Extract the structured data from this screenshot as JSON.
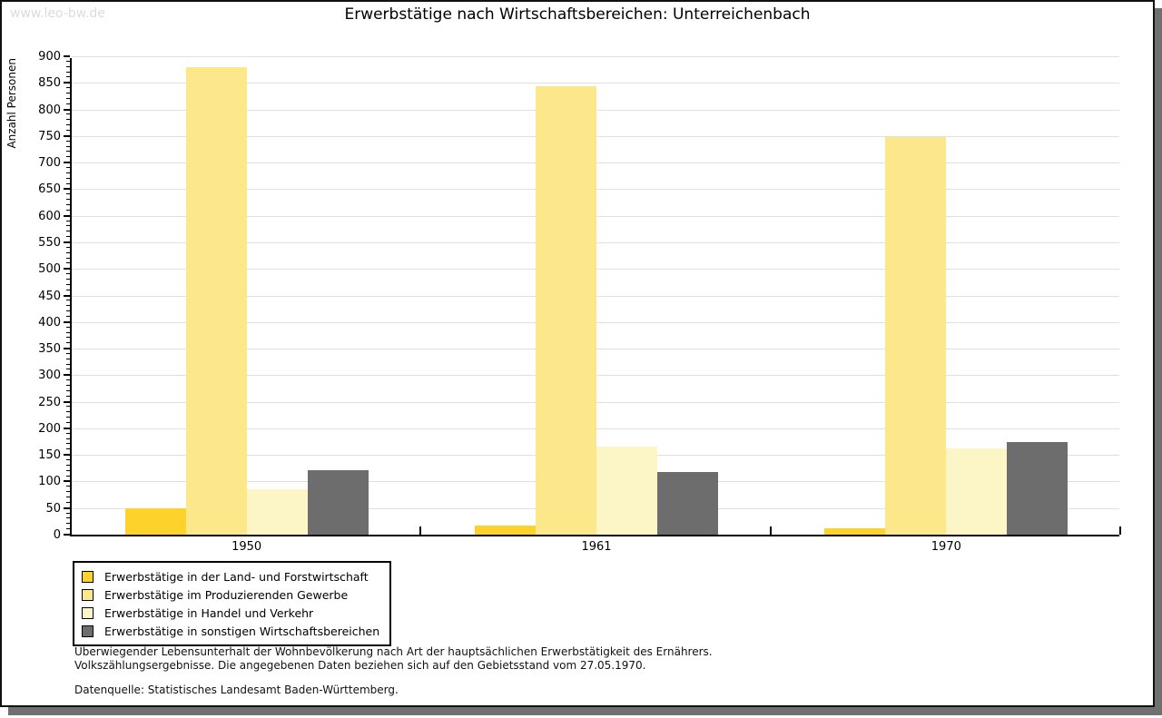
{
  "page": {
    "watermark": "www.leo-bw.de"
  },
  "chart_data": {
    "type": "bar",
    "title": "Erwerbstätige nach Wirtschaftsbereichen: Unterreichenbach",
    "ylabel": "Anzahl Personen",
    "ylim": [
      0,
      900
    ],
    "yticks": [
      0,
      50,
      100,
      150,
      200,
      250,
      300,
      350,
      400,
      450,
      500,
      550,
      600,
      650,
      700,
      750,
      800,
      850,
      900
    ],
    "minor_tick_step": 10,
    "grid": "horizontal",
    "legend_position": "bottom-left",
    "categories": [
      "1950",
      "1961",
      "1970"
    ],
    "series": [
      {
        "name": "Erwerbstätige in der Land- und Forstwirtschaft",
        "color": "#FCD22B",
        "values": [
          50,
          17,
          12
        ]
      },
      {
        "name": "Erwerbstätige im Produzierenden Gewerbe",
        "color": "#FCE88A",
        "values": [
          880,
          843,
          748
        ]
      },
      {
        "name": "Erwerbstätige in Handel und Verkehr",
        "color": "#FCF5C5",
        "values": [
          85,
          165,
          163
        ]
      },
      {
        "name": "Erwerbstätige in sonstigen Wirtschaftsbereichen",
        "color": "#6D6D6D",
        "values": [
          122,
          118,
          175
        ]
      }
    ]
  },
  "footnotes": {
    "line1": "Überwiegender Lebensunterhalt der Wohnbevölkerung nach Art der hauptsächlichen Erwerbstätigkeit des Ernährers.",
    "line2": "Volkszählungsergebnisse. Die angegebenen Daten beziehen sich auf den Gebietsstand vom 27.05.1970.",
    "source": "Datenquelle: Statistisches Landesamt Baden-Württemberg."
  },
  "colors": {
    "gridline": "#e0e0e0",
    "frame": "#101010",
    "shadow": "#707070",
    "watermark": "#dcdcdc"
  }
}
